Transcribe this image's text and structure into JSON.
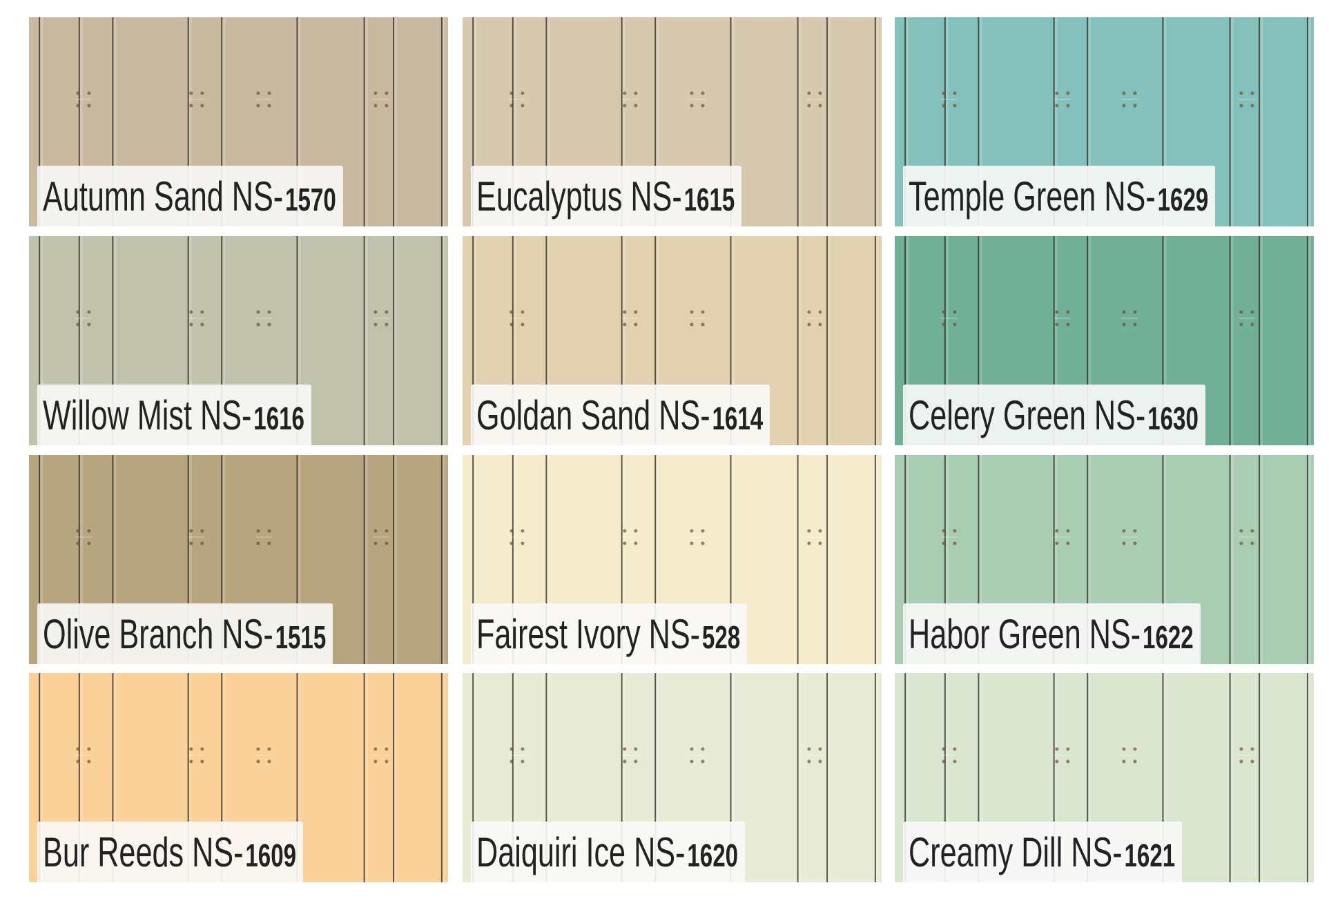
{
  "tiles": [
    {
      "name": "Autumn Sand NS-",
      "code": "1570",
      "color": "#c9b9a0"
    },
    {
      "name": "Eucalyptus NS-",
      "code": "1615",
      "color": "#d7c9ae"
    },
    {
      "name": "Temple Green NS-",
      "code": "1629",
      "color": "#85c1bb"
    },
    {
      "name": "Willow Mist NS-",
      "code": "1616",
      "color": "#c1c2ab"
    },
    {
      "name": "Goldan Sand NS-",
      "code": "1614",
      "color": "#e1d1af"
    },
    {
      "name": "Celery Green NS-",
      "code": "1630",
      "color": "#70b097"
    },
    {
      "name": "Olive Branch NS-",
      "code": "1515",
      "color": "#b6a57f"
    },
    {
      "name": "Fairest Ivory NS-",
      "code": "528",
      "color": "#f4eccc"
    },
    {
      "name": "Habor Green NS-",
      "code": "1622",
      "color": "#a9cdb2"
    },
    {
      "name": "Bur Reeds NS-",
      "code": "1609",
      "color": "#fad198"
    },
    {
      "name": "Daiquiri Ice NS-",
      "code": "1620",
      "color": "#e8ecd7"
    },
    {
      "name": "Creamy Dill NS-",
      "code": "1621",
      "color": "#dbe6d1"
    }
  ]
}
